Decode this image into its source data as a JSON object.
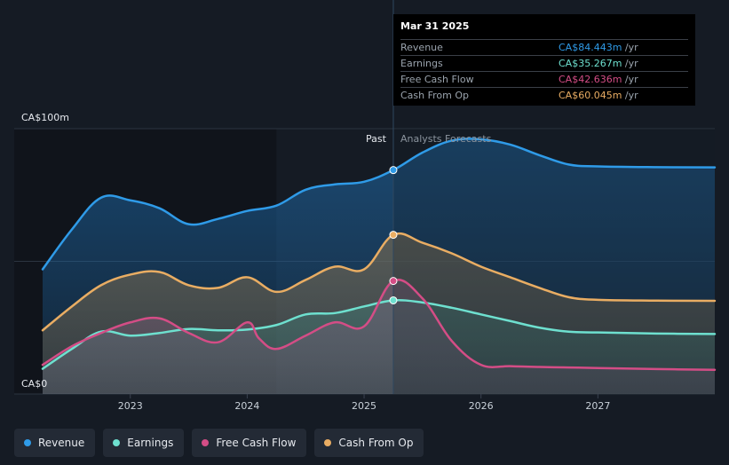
{
  "colors": {
    "revenue": "#2f9be8",
    "earnings": "#6ee0cf",
    "free_cash_flow": "#d44d86",
    "cash_from_op": "#e9ad63",
    "background": "#151b24",
    "past_shade": "#10141b"
  },
  "tooltip": {
    "date": "Mar 31 2025",
    "rows": [
      {
        "label": "Revenue",
        "value": "CA$84.443m",
        "unit": "/yr",
        "color": "#2f9be8"
      },
      {
        "label": "Earnings",
        "value": "CA$35.267m",
        "unit": "/yr",
        "color": "#6ee0cf"
      },
      {
        "label": "Free Cash Flow",
        "value": "CA$42.636m",
        "unit": "/yr",
        "color": "#d44d86"
      },
      {
        "label": "Cash From Op",
        "value": "CA$60.045m",
        "unit": "/yr",
        "color": "#e9ad63"
      }
    ]
  },
  "legend": [
    {
      "label": "Revenue",
      "color": "#2f9be8"
    },
    {
      "label": "Earnings",
      "color": "#6ee0cf"
    },
    {
      "label": "Free Cash Flow",
      "color": "#d44d86"
    },
    {
      "label": "Cash From Op",
      "color": "#e9ad63"
    }
  ],
  "chart_data": {
    "type": "area",
    "y_unit_labels": {
      "top": "CA$100m",
      "bottom": "CA$0"
    },
    "ylim": [
      0,
      100
    ],
    "xlim": [
      2022.25,
      2028.0
    ],
    "x_ticks": [
      2023,
      2024,
      2025,
      2026,
      2027
    ],
    "x_tick_labels": [
      "2023",
      "2024",
      "2025",
      "2026",
      "2027"
    ],
    "past_label": "Past",
    "forecast_label": "Analysts Forecasts",
    "divider_x": 2025.25,
    "past_shade_x": [
      2024.25,
      2025.25
    ],
    "grid": true,
    "series": [
      {
        "name": "Revenue",
        "key": "revenue",
        "marker_x": 2025.25,
        "points": [
          [
            2022.25,
            47
          ],
          [
            2022.5,
            62
          ],
          [
            2022.75,
            74
          ],
          [
            2023.0,
            73
          ],
          [
            2023.25,
            70
          ],
          [
            2023.5,
            64
          ],
          [
            2023.75,
            66
          ],
          [
            2024.0,
            69
          ],
          [
            2024.25,
            71
          ],
          [
            2024.5,
            77
          ],
          [
            2024.75,
            79
          ],
          [
            2025.0,
            80
          ],
          [
            2025.25,
            84.4
          ],
          [
            2025.5,
            91
          ],
          [
            2025.75,
            95.5
          ],
          [
            2026.0,
            96
          ],
          [
            2026.25,
            94
          ],
          [
            2026.5,
            90
          ],
          [
            2026.75,
            86.5
          ],
          [
            2027.0,
            85.8
          ],
          [
            2027.5,
            85.5
          ],
          [
            2028.0,
            85.4
          ]
        ]
      },
      {
        "name": "Cash From Op",
        "key": "cash_from_op",
        "marker_x": 2025.25,
        "points": [
          [
            2022.25,
            24
          ],
          [
            2022.5,
            33
          ],
          [
            2022.75,
            41
          ],
          [
            2023.0,
            45
          ],
          [
            2023.25,
            46
          ],
          [
            2023.5,
            41
          ],
          [
            2023.75,
            40
          ],
          [
            2024.0,
            44
          ],
          [
            2024.25,
            38.5
          ],
          [
            2024.5,
            43
          ],
          [
            2024.75,
            48
          ],
          [
            2025.0,
            47
          ],
          [
            2025.25,
            60
          ],
          [
            2025.5,
            57
          ],
          [
            2025.75,
            53
          ],
          [
            2026.0,
            48
          ],
          [
            2026.25,
            44
          ],
          [
            2026.5,
            40
          ],
          [
            2026.75,
            36.5
          ],
          [
            2027.0,
            35.5
          ],
          [
            2027.5,
            35.2
          ],
          [
            2028.0,
            35.1
          ]
        ]
      },
      {
        "name": "Earnings",
        "key": "earnings",
        "marker_x": 2025.25,
        "points": [
          [
            2022.25,
            9.5
          ],
          [
            2022.5,
            17
          ],
          [
            2022.75,
            23.5
          ],
          [
            2023.0,
            22
          ],
          [
            2023.25,
            23
          ],
          [
            2023.5,
            24.5
          ],
          [
            2023.75,
            24
          ],
          [
            2024.0,
            24.3
          ],
          [
            2024.25,
            26
          ],
          [
            2024.5,
            30
          ],
          [
            2024.75,
            30.5
          ],
          [
            2025.0,
            33
          ],
          [
            2025.25,
            35.3
          ],
          [
            2025.5,
            34.5
          ],
          [
            2025.75,
            32.5
          ],
          [
            2026.0,
            30
          ],
          [
            2026.25,
            27.5
          ],
          [
            2026.5,
            25
          ],
          [
            2026.75,
            23.5
          ],
          [
            2027.0,
            23.2
          ],
          [
            2027.5,
            22.8
          ],
          [
            2028.0,
            22.6
          ]
        ]
      },
      {
        "name": "Free Cash Flow",
        "key": "free_cash_flow",
        "marker_x": 2025.25,
        "points": [
          [
            2022.25,
            11
          ],
          [
            2022.5,
            18
          ],
          [
            2022.75,
            23
          ],
          [
            2023.0,
            27
          ],
          [
            2023.25,
            28.5
          ],
          [
            2023.5,
            23
          ],
          [
            2023.75,
            19.5
          ],
          [
            2024.0,
            27
          ],
          [
            2024.1,
            21
          ],
          [
            2024.25,
            17
          ],
          [
            2024.5,
            22
          ],
          [
            2024.75,
            27
          ],
          [
            2025.0,
            25.5
          ],
          [
            2025.25,
            42.6
          ],
          [
            2025.5,
            36
          ],
          [
            2025.75,
            20
          ],
          [
            2026.0,
            11
          ],
          [
            2026.25,
            10.5
          ],
          [
            2026.5,
            10.2
          ],
          [
            2026.75,
            10
          ],
          [
            2027.0,
            9.8
          ],
          [
            2027.5,
            9.4
          ],
          [
            2028.0,
            9.1
          ]
        ]
      }
    ]
  }
}
